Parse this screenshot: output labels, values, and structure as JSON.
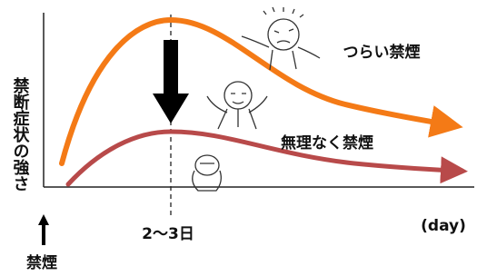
{
  "y_axis_label": "禁断症状の強さ",
  "curves": [
    {
      "label": "つらい禁煙"
    },
    {
      "label": "無理なく禁煙"
    }
  ],
  "x_marker_label": "2〜3日",
  "x_unit": "(day)",
  "start_label": "禁煙"
}
